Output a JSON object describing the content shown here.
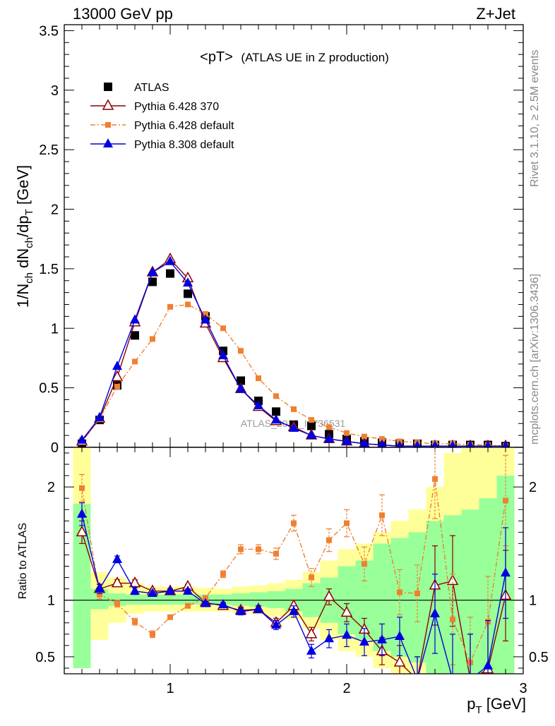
{
  "header": {
    "left": "13000 GeV pp",
    "right": "Z+Jet"
  },
  "side_labels": {
    "rivet": "Rivet 3.1.10, ≥ 2.5M events",
    "mcplots": "mcplots.cern.ch [arXiv:1306.3436]"
  },
  "plot_title": {
    "main": "<pT>",
    "sub": "(ATLAS UE in Z production)"
  },
  "watermark": "ATLAS_2019_I1736531",
  "ylabel_top": "1/N_ch dN_ch/dp_T [GeV]",
  "ylabel_bottom": "Ratio to ATLAS",
  "xlabel": "p_T [GeV]",
  "colors": {
    "atlas": "#000000",
    "p6_370": "#8b0000",
    "p6_default": "#f08030",
    "p8_default": "#0000e0",
    "band_inner": "#99ff99",
    "band_outer": "#ffff99"
  },
  "chart_data": {
    "type": "line",
    "x": [
      0.5,
      0.6,
      0.7,
      0.8,
      0.9,
      1.0,
      1.1,
      1.2,
      1.3,
      1.4,
      1.5,
      1.6,
      1.7,
      1.8,
      1.9,
      2.0,
      2.1,
      2.2,
      2.3,
      2.4,
      2.5,
      2.6,
      2.7,
      2.8,
      2.9
    ],
    "xlim": [
      0.4,
      3.0
    ],
    "xticks": [
      "1",
      "2",
      "3"
    ],
    "top": {
      "ylim": [
        0,
        3.55
      ],
      "yticks": [
        "0",
        "0.5",
        "1",
        "1.5",
        "2",
        "2.5",
        "3",
        "3.5"
      ],
      "series": [
        {
          "name": "ATLAS",
          "values": [
            0.03,
            0.23,
            0.52,
            0.94,
            1.39,
            1.46,
            1.29,
            1.1,
            0.81,
            0.56,
            0.39,
            0.3,
            0.19,
            0.18,
            0.11,
            0.07,
            0.05,
            0.04,
            0.03,
            0.03,
            0.02,
            0.02,
            0.02,
            0.02,
            0.01
          ]
        },
        {
          "name": "Pythia 6.428 370",
          "values": [
            0.05,
            0.24,
            0.59,
            1.05,
            1.47,
            1.58,
            1.42,
            1.04,
            0.75,
            0.49,
            0.34,
            0.22,
            0.17,
            0.1,
            0.07,
            0.05,
            0.03,
            0.02,
            0.01,
            0.01,
            0.01,
            0.01,
            0.01,
            0.01,
            0.01
          ]
        },
        {
          "name": "Pythia 6.428 default",
          "values": [
            0.06,
            0.24,
            0.51,
            0.72,
            0.91,
            1.18,
            1.2,
            1.12,
            1.0,
            0.81,
            0.58,
            0.43,
            0.32,
            0.23,
            0.17,
            0.12,
            0.09,
            0.07,
            0.05,
            0.04,
            0.03,
            0.03,
            0.02,
            0.02,
            0.01
          ]
        },
        {
          "name": "Pythia 8.308 default",
          "values": [
            0.06,
            0.25,
            0.68,
            1.07,
            1.47,
            1.56,
            1.38,
            1.07,
            0.77,
            0.49,
            0.35,
            0.23,
            0.16,
            0.1,
            0.07,
            0.05,
            0.03,
            0.02,
            0.01,
            0.01,
            0.01,
            0.01,
            0.01,
            0.01,
            0.01
          ]
        }
      ]
    },
    "ratio": {
      "ylim": [
        0.35,
        2.35
      ],
      "yticks": [
        "0.5",
        "1",
        "2"
      ],
      "reference": 1.0,
      "band_inner": [
        [
          0.4,
          1.85
        ],
        [
          0.92,
          1.1
        ],
        [
          0.95,
          1.06
        ],
        [
          0.96,
          1.05
        ],
        [
          0.96,
          1.05
        ],
        [
          0.96,
          1.05
        ],
        [
          0.96,
          1.05
        ],
        [
          0.96,
          1.05
        ],
        [
          0.96,
          1.05
        ],
        [
          0.95,
          1.06
        ],
        [
          0.94,
          1.07
        ],
        [
          0.93,
          1.08
        ],
        [
          0.9,
          1.1
        ],
        [
          0.85,
          1.15
        ],
        [
          0.8,
          1.2
        ],
        [
          0.7,
          1.3
        ],
        [
          0.65,
          1.35
        ],
        [
          0.55,
          1.5
        ],
        [
          0.5,
          1.55
        ],
        [
          0.45,
          1.6
        ],
        [
          0.35,
          1.7
        ],
        [
          0.3,
          1.75
        ],
        [
          0.3,
          1.8
        ],
        [
          0.3,
          1.9
        ],
        [
          0.3,
          2.1
        ]
      ],
      "band_outer": [
        [
          0.4,
          2.4
        ],
        [
          0.65,
          1.25
        ],
        [
          0.8,
          1.2
        ],
        [
          0.88,
          1.15
        ],
        [
          0.9,
          1.12
        ],
        [
          0.9,
          1.12
        ],
        [
          0.9,
          1.12
        ],
        [
          0.9,
          1.11
        ],
        [
          0.9,
          1.1
        ],
        [
          0.89,
          1.12
        ],
        [
          0.88,
          1.13
        ],
        [
          0.86,
          1.15
        ],
        [
          0.83,
          1.18
        ],
        [
          0.75,
          1.25
        ],
        [
          0.65,
          1.35
        ],
        [
          0.55,
          1.45
        ],
        [
          0.5,
          1.5
        ],
        [
          0.4,
          1.6
        ],
        [
          0.35,
          1.7
        ],
        [
          0.3,
          1.8
        ],
        [
          0.25,
          2.0
        ],
        [
          0.25,
          2.3
        ],
        [
          0.25,
          2.4
        ],
        [
          0.25,
          2.4
        ],
        [
          0.25,
          2.4
        ]
      ],
      "series": [
        {
          "name": "Pythia 6.428 370",
          "values": [
            1.6,
            1.1,
            1.15,
            1.15,
            1.08,
            1.08,
            1.12,
            0.98,
            0.95,
            0.91,
            0.92,
            0.8,
            0.95,
            0.7,
            1.03,
            0.89,
            0.74,
            0.55,
            0.45,
            0.3,
            1.13,
            1.17,
            0.3,
            0.39,
            1.04
          ],
          "err": [
            0.1,
            0.04,
            0.03,
            0.03,
            0.02,
            0.02,
            0.02,
            0.02,
            0.02,
            0.03,
            0.03,
            0.04,
            0.05,
            0.06,
            0.07,
            0.08,
            0.1,
            0.12,
            0.15,
            0.2,
            0.35,
            0.4,
            0.4,
            0.4,
            0.4
          ]
        },
        {
          "name": "Pythia 6.428 default",
          "values": [
            1.99,
            1.05,
            0.97,
            0.81,
            0.7,
            0.85,
            0.95,
            1.02,
            1.23,
            1.45,
            1.45,
            1.41,
            1.68,
            1.2,
            1.53,
            1.68,
            1.32,
            1.75,
            1.07,
            1.06,
            2.07,
            0.83,
            0.45,
            0.81,
            1.88
          ],
          "err": [
            0.12,
            0.04,
            0.03,
            0.03,
            0.03,
            0.02,
            0.02,
            0.02,
            0.03,
            0.04,
            0.04,
            0.05,
            0.07,
            0.08,
            0.1,
            0.12,
            0.15,
            0.18,
            0.2,
            0.25,
            0.35,
            0.4,
            0.4,
            0.4,
            0.4
          ]
        },
        {
          "name": "Pythia 8.308 default",
          "values": [
            1.76,
            1.1,
            1.36,
            1.08,
            1.06,
            1.08,
            1.08,
            0.97,
            0.96,
            0.9,
            0.92,
            0.78,
            0.9,
            0.55,
            0.66,
            0.69,
            0.63,
            0.65,
            0.68,
            0.3,
            0.88,
            0.3,
            0.3,
            0.42,
            1.24
          ],
          "err": [
            0.1,
            0.04,
            0.03,
            0.03,
            0.02,
            0.02,
            0.02,
            0.02,
            0.02,
            0.03,
            0.03,
            0.04,
            0.05,
            0.06,
            0.08,
            0.1,
            0.12,
            0.14,
            0.17,
            0.2,
            0.35,
            0.4,
            0.4,
            0.4,
            0.4
          ]
        }
      ]
    }
  },
  "legend": [
    {
      "label": "ATLAS",
      "marker": "square",
      "series": "atlas"
    },
    {
      "label": "Pythia 6.428 370",
      "marker": "open-triangle",
      "series": "p6_370"
    },
    {
      "label": "Pythia 6.428 default",
      "marker": "small-square-dashdot",
      "series": "p6_default"
    },
    {
      "label": "Pythia 8.308 default",
      "marker": "filled-triangle",
      "series": "p8_default"
    }
  ]
}
